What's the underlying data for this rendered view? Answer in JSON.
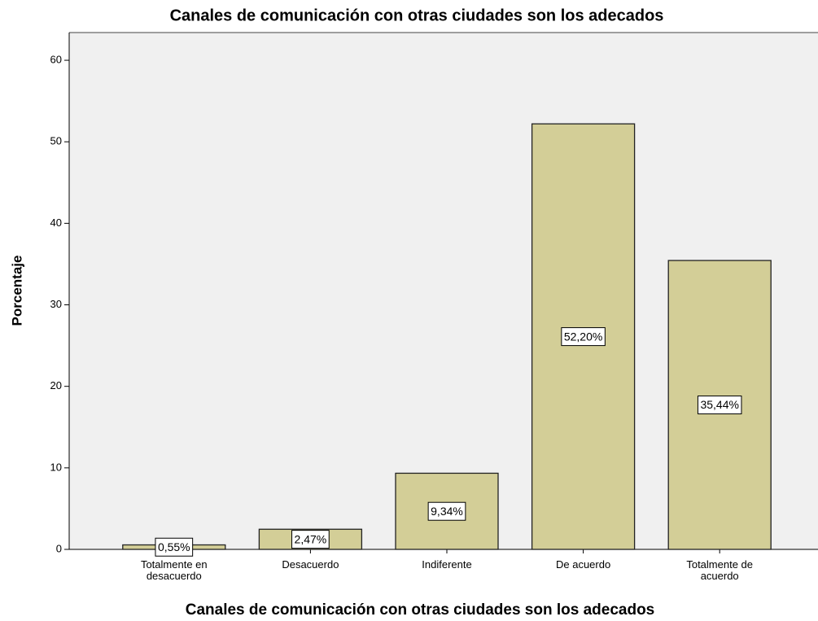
{
  "chart_data": {
    "type": "bar",
    "title": "Canales de comunicación con otras ciudades son los adecados",
    "x_label": "Canales de comunicación con otras ciudades son los adecados",
    "y_label": "Porcentaje",
    "categories": [
      "Totalmente en desacuerdo",
      "Desacuerdo",
      "Indiferente",
      "De acuerdo",
      "Totalmente de acuerdo"
    ],
    "values": [
      0.55,
      2.47,
      9.34,
      52.2,
      35.44
    ],
    "value_labels": [
      "0,55%",
      "2,47%",
      "9,34%",
      "52,20%",
      "35,44%"
    ],
    "color": "#d3ce97",
    "ylim": [
      0,
      63.4
    ],
    "yticks": [
      0,
      10,
      20,
      30,
      40,
      50,
      60
    ]
  }
}
